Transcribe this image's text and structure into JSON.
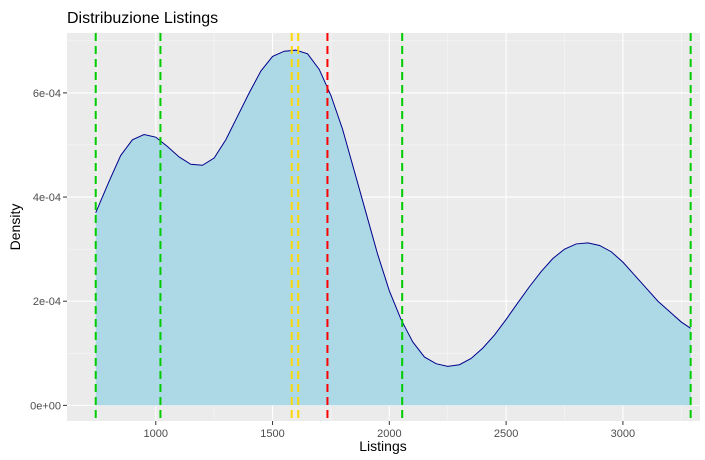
{
  "chart_data": {
    "type": "area",
    "title": "Distribuzione Listings",
    "xlabel": "Listings",
    "ylabel": "Density",
    "xlim": [
      620,
      3330
    ],
    "ylim": [
      -3e-05,
      0.000715
    ],
    "x_ticks": [
      1000,
      1500,
      2000,
      2500,
      3000
    ],
    "x_tick_labels": [
      "1000",
      "1500",
      "2000",
      "2500",
      "3000"
    ],
    "y_ticks": [
      0,
      0.0002,
      0.0004,
      0.0006
    ],
    "y_tick_labels": [
      "0e+00",
      "2e-04",
      "4e-04",
      "6e-04"
    ],
    "grid": true,
    "series": [
      {
        "fill": "#add8e6",
        "line_color": "#00008b",
        "x": [
          743,
          800,
          850,
          900,
          950,
          1000,
          1050,
          1100,
          1150,
          1200,
          1250,
          1300,
          1350,
          1400,
          1450,
          1500,
          1550,
          1600,
          1650,
          1700,
          1750,
          1800,
          1850,
          1900,
          1950,
          2000,
          2050,
          2100,
          2150,
          2200,
          2250,
          2300,
          2350,
          2400,
          2450,
          2500,
          2550,
          2600,
          2650,
          2700,
          2750,
          2800,
          2850,
          2900,
          2950,
          3000,
          3050,
          3100,
          3150,
          3200,
          3250,
          3290
        ],
        "y": [
          0.00037,
          0.00043,
          0.00048,
          0.00051,
          0.00052,
          0.000515,
          0.000497,
          0.000477,
          0.000463,
          0.000461,
          0.000475,
          0.00051,
          0.000555,
          0.0006,
          0.000642,
          0.00067,
          0.00068,
          0.000682,
          0.000675,
          0.000645,
          0.000595,
          0.00053,
          0.00045,
          0.00037,
          0.00029,
          0.00022,
          0.000165,
          0.000122,
          9.3e-05,
          8e-05,
          7.5e-05,
          7.8e-05,
          9e-05,
          0.00011,
          0.000135,
          0.000165,
          0.000197,
          0.000228,
          0.000257,
          0.000282,
          0.0003,
          0.00031,
          0.000312,
          0.000307,
          0.000295,
          0.000275,
          0.00025,
          0.000225,
          0.0002,
          0.00018,
          0.00016,
          0.000148
        ]
      }
    ],
    "vlines": [
      {
        "x": 743,
        "color": "#00cc00"
      },
      {
        "x": 1020,
        "color": "#00cc00"
      },
      {
        "x": 1582,
        "color": "#ffd700"
      },
      {
        "x": 1610,
        "color": "#ffd700"
      },
      {
        "x": 1735,
        "color": "#ff0000"
      },
      {
        "x": 2055,
        "color": "#00cc00"
      },
      {
        "x": 3290,
        "color": "#00cc00"
      }
    ]
  }
}
